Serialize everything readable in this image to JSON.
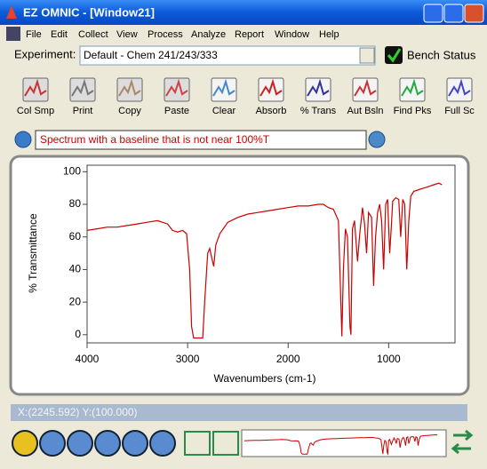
{
  "window": {
    "title": "EZ OMNIC - [Window21]"
  },
  "menu": [
    "File",
    "Edit",
    "Collect",
    "View",
    "Process",
    "Analyze",
    "Report",
    "Window",
    "Help"
  ],
  "experiment": {
    "label": "Experiment:",
    "value": "Default - Chem 241/243/333",
    "bench": "Bench Status"
  },
  "toolbar": [
    "Col Smp",
    "Print",
    "Copy",
    "Paste",
    "Clear",
    "Absorb",
    "% Trans",
    "Aut Bsln",
    "Find Pks",
    "Full Sc"
  ],
  "info": "Spectrum with a baseline that is not near 100%T",
  "status": "X:(2245.592) Y:(100.000)",
  "chart_data": {
    "type": "line",
    "xlabel": "Wavenumbers (cm-1)",
    "ylabel": "% Transmittance",
    "color": "#cc0000",
    "xlim": [
      4000,
      340
    ],
    "ylim": [
      -5,
      104
    ],
    "xticks": [
      4000,
      3000,
      2000,
      1000
    ],
    "yticks": [
      0,
      20,
      40,
      60,
      80,
      100
    ],
    "x": [
      4000,
      3900,
      3800,
      3700,
      3600,
      3500,
      3400,
      3300,
      3200,
      3150,
      3100,
      3050,
      3010,
      2980,
      2960,
      2940,
      2900,
      2870,
      2850,
      2830,
      2800,
      2780,
      2760,
      2740,
      2720,
      2680,
      2600,
      2500,
      2400,
      2300,
      2200,
      2100,
      2000,
      1900,
      1800,
      1700,
      1650,
      1600,
      1550,
      1500,
      1480,
      1465,
      1450,
      1430,
      1410,
      1385,
      1375,
      1360,
      1340,
      1310,
      1290,
      1260,
      1240,
      1220,
      1200,
      1170,
      1150,
      1130,
      1110,
      1090,
      1070,
      1050,
      1030,
      1010,
      990,
      975,
      960,
      930,
      900,
      880,
      860,
      840,
      820,
      800,
      780,
      750,
      700,
      650,
      600,
      550,
      500,
      470
    ],
    "values": [
      64,
      65,
      66,
      66,
      67,
      68,
      69,
      70,
      68,
      64,
      63,
      64,
      62,
      40,
      5,
      -2,
      -2,
      -2,
      -2,
      20,
      50,
      53,
      47,
      42,
      55,
      62,
      69,
      72,
      74,
      75,
      76,
      77,
      78,
      79,
      79,
      80,
      80,
      78,
      77,
      70,
      30,
      -1,
      40,
      65,
      60,
      5,
      0,
      65,
      70,
      45,
      60,
      78,
      68,
      50,
      75,
      72,
      30,
      60,
      75,
      80,
      70,
      40,
      80,
      83,
      50,
      65,
      82,
      84,
      83,
      60,
      83,
      80,
      40,
      70,
      85,
      88,
      89,
      90,
      91,
      92,
      93,
      92
    ]
  }
}
